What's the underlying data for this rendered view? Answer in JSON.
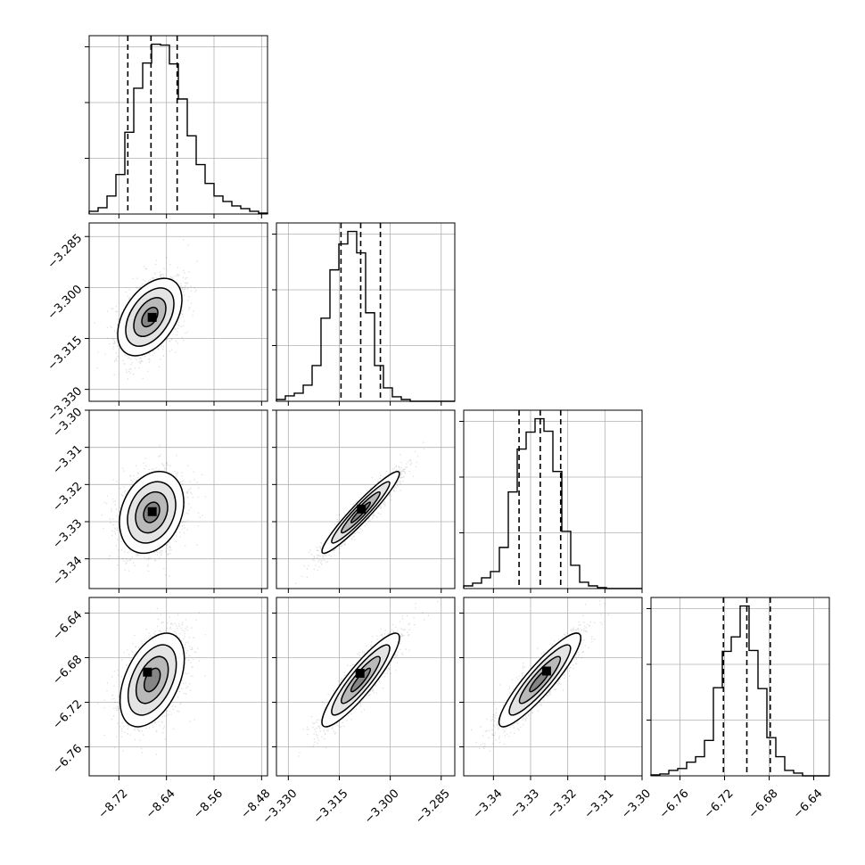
{
  "chart_data": [
    {
      "type": "histogram",
      "panel": "diag-0",
      "x": {
        "range": [
          -8.77,
          -8.47
        ],
        "ticks": [
          -8.72,
          -8.64,
          -8.56,
          -8.48
        ]
      },
      "bin_edges": [
        -8.77,
        -8.755,
        -8.74,
        -8.725,
        -8.71,
        -8.695,
        -8.68,
        -8.665,
        -8.65,
        -8.635,
        -8.62,
        -8.605,
        -8.59,
        -8.575,
        -8.56,
        -8.545,
        -8.53,
        -8.515,
        -8.5,
        -8.485,
        -8.47
      ],
      "counts": [
        3,
        7,
        20,
        44,
        91,
        140,
        168,
        189,
        188,
        167,
        128,
        87,
        55,
        34,
        20,
        14,
        9,
        6,
        3,
        1
      ],
      "quantile_lines": [
        -8.705,
        -8.666,
        -8.622
      ]
    },
    {
      "type": "histogram",
      "panel": "diag-1",
      "x": {
        "range": [
          -3.3335,
          -3.281
        ],
        "ticks": [
          -3.33,
          -3.315,
          -3.3,
          -3.285
        ]
      },
      "bin_edges": [
        -3.3335,
        -3.33088,
        -3.32825,
        -3.32562,
        -3.323,
        -3.32038,
        -3.31775,
        -3.31512,
        -3.3125,
        -3.30988,
        -3.30725,
        -3.30462,
        -3.302,
        -3.29938,
        -3.29675,
        -3.29412,
        -3.2915,
        -3.28887,
        -3.28625,
        -3.28362,
        -3.281
      ],
      "counts": [
        2,
        6,
        9,
        18,
        40,
        93,
        147,
        176,
        190,
        166,
        99,
        40,
        15,
        5,
        2,
        0,
        0,
        0,
        0,
        0
      ],
      "quantile_lines": [
        -3.3145,
        -3.3087,
        -3.3029
      ]
    },
    {
      "type": "histogram",
      "panel": "diag-2",
      "x": {
        "range": [
          -3.348,
          -3.3
        ],
        "ticks": [
          -3.34,
          -3.33,
          -3.32,
          -3.31,
          -3.3
        ]
      },
      "bin_edges": [
        -3.348,
        -3.3456,
        -3.3432,
        -3.3408,
        -3.3384,
        -3.336,
        -3.3336,
        -3.3312,
        -3.3288,
        -3.3264,
        -3.324,
        -3.3216,
        -3.3192,
        -3.3168,
        -3.3144,
        -3.312,
        -3.3096,
        -3.3072,
        -3.3048,
        -3.3024,
        -3.3
      ],
      "counts": [
        3,
        6,
        12,
        19,
        46,
        108,
        156,
        175,
        190,
        176,
        131,
        64,
        26,
        7,
        3,
        1,
        0,
        0,
        0,
        0
      ],
      "quantile_lines": [
        -3.3331,
        -3.3274,
        -3.3219
      ]
    },
    {
      "type": "histogram",
      "panel": "diag-3",
      "x": {
        "range": [
          -6.786,
          -6.626
        ],
        "ticks": [
          -6.76,
          -6.72,
          -6.68,
          -6.64
        ]
      },
      "bin_edges": [
        -6.786,
        -6.778,
        -6.77,
        -6.762,
        -6.754,
        -6.746,
        -6.738,
        -6.73,
        -6.722,
        -6.714,
        -6.706,
        -6.698,
        -6.69,
        -6.682,
        -6.674,
        -6.666,
        -6.658,
        -6.65,
        -6.642,
        -6.634,
        -6.626
      ],
      "counts": [
        1,
        2,
        6,
        8,
        15,
        21,
        39,
        97,
        137,
        153,
        187,
        138,
        96,
        42,
        21,
        6,
        3,
        0,
        0,
        0
      ],
      "quantile_lines": [
        -6.721,
        -6.7,
        -6.679
      ]
    },
    {
      "type": "scatter-density",
      "panel": "p10",
      "x": {
        "range": [
          -8.77,
          -8.47
        ],
        "ticks": [
          -8.72,
          -8.64,
          -8.56,
          -8.48
        ]
      },
      "y": {
        "range": [
          -3.3335,
          -3.281
        ],
        "ticks": [
          -3.33,
          -3.315,
          -3.3,
          -3.285
        ]
      },
      "center": [
        -8.668,
        -3.3087
      ],
      "sd": [
        0.027,
        0.0057
      ],
      "corr": 0.45,
      "max_density_point": [
        -8.664,
        -3.3088
      ]
    },
    {
      "type": "scatter-density",
      "panel": "p20",
      "x": {
        "range": [
          -8.77,
          -8.47
        ],
        "ticks": [
          -8.72,
          -8.64,
          -8.56,
          -8.48
        ]
      },
      "y": {
        "range": [
          -3.348,
          -3.3
        ],
        "ticks": [
          -3.34,
          -3.33,
          -3.32,
          -3.31,
          -3.3
        ]
      },
      "center": [
        -8.665,
        -3.3275
      ],
      "sd": [
        0.027,
        0.0055
      ],
      "corr": 0.25,
      "max_density_point": [
        -8.664,
        -3.3273
      ]
    },
    {
      "type": "scatter-density",
      "panel": "p21",
      "x": {
        "range": [
          -3.3335,
          -3.281
        ],
        "ticks": [
          -3.33,
          -3.315,
          -3.3,
          -3.285
        ]
      },
      "y": {
        "range": [
          -3.348,
          -3.3
        ],
        "ticks": [
          -3.34,
          -3.33,
          -3.32,
          -3.31,
          -3.3
        ]
      },
      "center": [
        -3.3087,
        -3.3275
      ],
      "sd": [
        0.0057,
        0.0055
      ],
      "corr": 0.95,
      "max_density_point": [
        -3.3085,
        -3.3266
      ]
    },
    {
      "type": "scatter-density",
      "panel": "p30",
      "x": {
        "range": [
          -8.77,
          -8.47
        ],
        "ticks": [
          -8.72,
          -8.64,
          -8.56,
          -8.48
        ]
      },
      "y": {
        "range": [
          -6.786,
          -6.626
        ],
        "ticks": [
          -6.76,
          -6.72,
          -6.68,
          -6.64
        ]
      },
      "center": [
        -8.664,
        -6.7
      ],
      "sd": [
        0.027,
        0.021
      ],
      "corr": 0.45,
      "max_density_point": [
        -8.672,
        -6.693
      ]
    },
    {
      "type": "scatter-density",
      "panel": "p31",
      "x": {
        "range": [
          -3.3335,
          -3.281
        ],
        "ticks": [
          -3.33,
          -3.315,
          -3.3,
          -3.285
        ]
      },
      "y": {
        "range": [
          -6.786,
          -6.626
        ],
        "ticks": [
          -6.76,
          -6.72,
          -6.68,
          -6.64
        ]
      },
      "center": [
        -3.3087,
        -6.7
      ],
      "sd": [
        0.0057,
        0.021
      ],
      "corr": 0.9,
      "max_density_point": [
        -3.3089,
        -6.694
      ]
    },
    {
      "type": "scatter-density",
      "panel": "p32",
      "x": {
        "range": [
          -3.348,
          -3.3
        ],
        "ticks": [
          -3.34,
          -3.33,
          -3.32,
          -3.31,
          -3.3
        ]
      },
      "y": {
        "range": [
          -6.786,
          -6.626
        ],
        "ticks": [
          -6.76,
          -6.72,
          -6.68,
          -6.64
        ]
      },
      "center": [
        -3.3275,
        -6.7
      ],
      "sd": [
        0.0055,
        0.021
      ],
      "corr": 0.9,
      "max_density_point": [
        -3.3257,
        -6.692
      ]
    }
  ]
}
